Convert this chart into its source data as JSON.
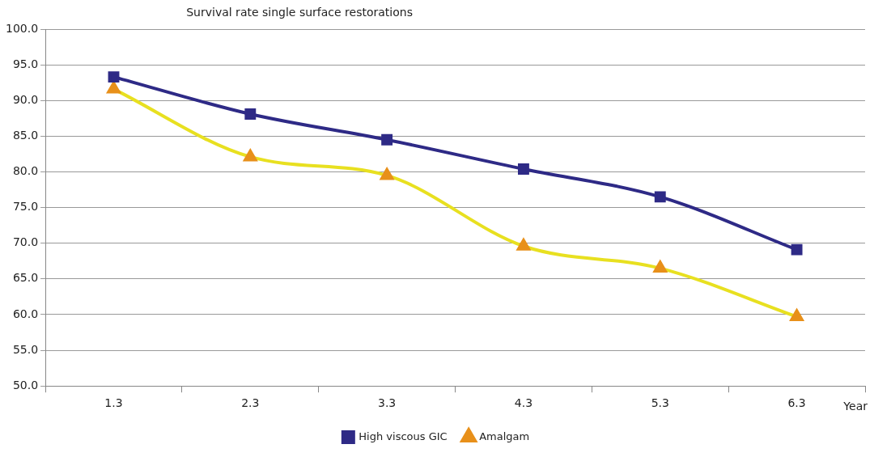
{
  "chart_data": {
    "type": "line",
    "title": "Survival rate single surface restorations",
    "xlabel": "Year",
    "categories": [
      "1.3",
      "2.3",
      "3.3",
      "4.3",
      "5.3",
      "6.3"
    ],
    "series": [
      {
        "name": "High viscous GIC",
        "color": "#2e2a86",
        "marker": "square",
        "values": [
          93.3,
          88.1,
          84.5,
          80.4,
          76.5,
          69.1
        ]
      },
      {
        "name": "Amalgam",
        "color": "#e8e020",
        "marker": "triangle",
        "values": [
          91.6,
          82.1,
          79.5,
          69.6,
          66.5,
          59.7
        ]
      }
    ],
    "ylim": [
      50,
      100
    ],
    "yticks": [
      {
        "value": 50,
        "label": "50.0"
      },
      {
        "value": 55,
        "label": "55.0"
      },
      {
        "value": 60,
        "label": "60.0"
      },
      {
        "value": 65,
        "label": "65.0"
      },
      {
        "value": 70,
        "label": "70.0"
      },
      {
        "value": 75,
        "label": "75.0"
      },
      {
        "value": 80,
        "label": "80.0"
      },
      {
        "value": 85,
        "label": "85.0"
      },
      {
        "value": 90,
        "label": "90.0"
      },
      {
        "value": 95,
        "label": "95.0"
      },
      {
        "value": 100,
        "label": "100.0"
      }
    ],
    "grid": "y",
    "legend": "bottom",
    "line_style": "solid"
  }
}
